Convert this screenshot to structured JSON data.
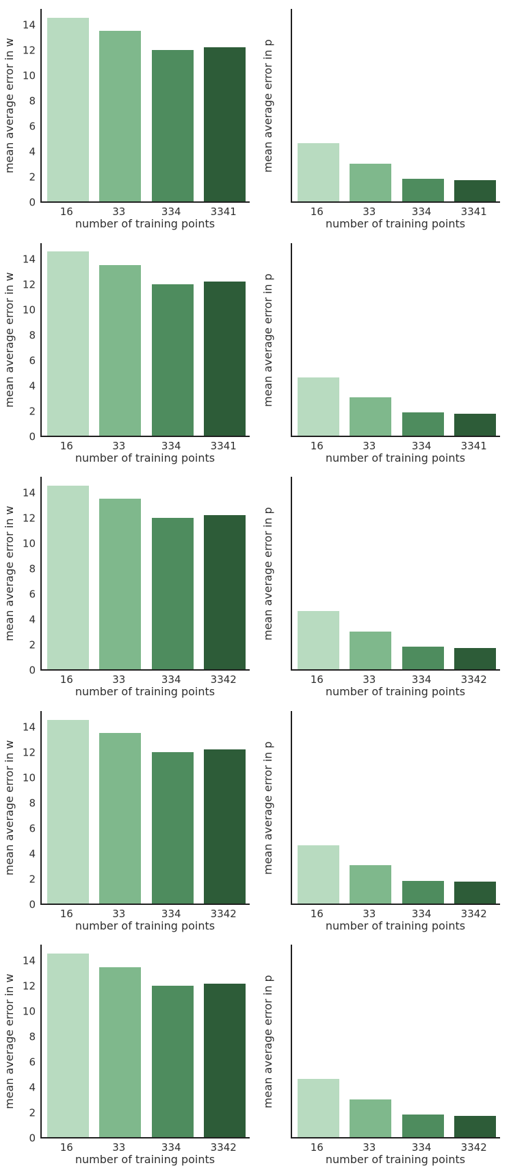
{
  "figure": {
    "background": "#ffffff",
    "rows": 5,
    "cols": 2,
    "grid": false,
    "legend": "none"
  },
  "palette": {
    "bars": [
      "#b8dbc0",
      "#7fb88c",
      "#4e8c5e",
      "#2d5c38"
    ],
    "spine": "#1f1f1f",
    "text": "#2e2e2e"
  },
  "chart_data": [
    {
      "type": "bar",
      "row": 1,
      "col": "left",
      "title": "",
      "ylabel": "mean average error in w",
      "xlabel": "number of training points",
      "categories": [
        "16",
        "33",
        "334",
        "3341"
      ],
      "values": [
        14.5,
        13.45,
        11.95,
        12.15
      ],
      "yticks": [
        "0",
        "2",
        "4",
        "6",
        "8",
        "10",
        "12",
        "14"
      ],
      "ytick_values": [
        0,
        2,
        4,
        6,
        8,
        10,
        12,
        14
      ],
      "show_ytick_labels": true,
      "ylim": [
        0,
        15.3
      ],
      "grid": false
    },
    {
      "type": "bar",
      "row": 1,
      "col": "right",
      "title": "",
      "ylabel": "mean average error in p",
      "xlabel": "number of training points",
      "categories": [
        "16",
        "33",
        "334",
        "3341"
      ],
      "values": [
        4.6,
        3.0,
        1.8,
        1.7
      ],
      "yticks": [],
      "ytick_values": [],
      "show_ytick_labels": false,
      "ylim": [
        0,
        15.3
      ],
      "grid": false
    },
    {
      "type": "bar",
      "row": 2,
      "col": "left",
      "title": "",
      "ylabel": "mean average error in w",
      "xlabel": "number of training points",
      "categories": [
        "16",
        "33",
        "334",
        "3341"
      ],
      "values": [
        14.5,
        13.45,
        11.95,
        12.15
      ],
      "yticks": [
        "0",
        "2",
        "4",
        "6",
        "8",
        "10",
        "12",
        "14"
      ],
      "ytick_values": [
        0,
        2,
        4,
        6,
        8,
        10,
        12,
        14
      ],
      "show_ytick_labels": true,
      "ylim": [
        0,
        15.3
      ],
      "grid": false
    },
    {
      "type": "bar",
      "row": 2,
      "col": "right",
      "title": "",
      "ylabel": "mean average error in p",
      "xlabel": "number of training points",
      "categories": [
        "16",
        "33",
        "334",
        "3341"
      ],
      "values": [
        4.6,
        3.0,
        1.8,
        1.7
      ],
      "yticks": [],
      "ytick_values": [],
      "show_ytick_labels": false,
      "ylim": [
        0,
        15.3
      ],
      "grid": false
    },
    {
      "type": "bar",
      "row": 3,
      "col": "left",
      "title": "",
      "ylabel": "mean average error in w",
      "xlabel": "number of training points",
      "categories": [
        "16",
        "33",
        "334",
        "3342"
      ],
      "values": [
        14.5,
        13.45,
        11.95,
        12.15
      ],
      "yticks": [
        "0",
        "2",
        "4",
        "6",
        "8",
        "10",
        "12",
        "14"
      ],
      "ytick_values": [
        0,
        2,
        4,
        6,
        8,
        10,
        12,
        14
      ],
      "show_ytick_labels": true,
      "ylim": [
        0,
        15.3
      ],
      "grid": false
    },
    {
      "type": "bar",
      "row": 3,
      "col": "right",
      "title": "",
      "ylabel": "mean average error in p",
      "xlabel": "number of training points",
      "categories": [
        "16",
        "33",
        "334",
        "3342"
      ],
      "values": [
        4.6,
        3.0,
        1.8,
        1.7
      ],
      "yticks": [],
      "ytick_values": [],
      "show_ytick_labels": false,
      "ylim": [
        0,
        15.3
      ],
      "grid": false
    },
    {
      "type": "bar",
      "row": 4,
      "col": "left",
      "title": "",
      "ylabel": "mean average error in w",
      "xlabel": "number of training points",
      "categories": [
        "16",
        "33",
        "334",
        "3342"
      ],
      "values": [
        14.5,
        13.45,
        11.95,
        12.15
      ],
      "yticks": [
        "0",
        "2",
        "4",
        "6",
        "8",
        "10",
        "12",
        "14"
      ],
      "ytick_values": [
        0,
        2,
        4,
        6,
        8,
        10,
        12,
        14
      ],
      "show_ytick_labels": true,
      "ylim": [
        0,
        15.3
      ],
      "grid": false
    },
    {
      "type": "bar",
      "row": 4,
      "col": "right",
      "title": "",
      "ylabel": "mean average error in p",
      "xlabel": "number of training points",
      "categories": [
        "16",
        "33",
        "334",
        "3342"
      ],
      "values": [
        4.6,
        3.0,
        1.8,
        1.7
      ],
      "yticks": [],
      "ytick_values": [],
      "show_ytick_labels": false,
      "ylim": [
        0,
        15.3
      ],
      "grid": false
    },
    {
      "type": "bar",
      "row": 5,
      "col": "left",
      "title": "",
      "ylabel": "mean average error in w",
      "xlabel": "number of training points",
      "categories": [
        "16",
        "33",
        "334",
        "3342"
      ],
      "values": [
        14.5,
        13.45,
        11.95,
        12.15
      ],
      "yticks": [
        "0",
        "2",
        "4",
        "6",
        "8",
        "10",
        "12",
        "14"
      ],
      "ytick_values": [
        0,
        2,
        4,
        6,
        8,
        10,
        12,
        14
      ],
      "show_ytick_labels": true,
      "ylim": [
        0,
        15.3
      ],
      "grid": false
    },
    {
      "type": "bar",
      "row": 5,
      "col": "right",
      "title": "",
      "ylabel": "mean average error in p",
      "xlabel": "number of training points",
      "categories": [
        "16",
        "33",
        "334",
        "3342"
      ],
      "values": [
        4.6,
        3.0,
        1.8,
        1.7
      ],
      "yticks": [],
      "ytick_values": [],
      "show_ytick_labels": false,
      "ylim": [
        0,
        15.3
      ],
      "grid": false
    }
  ]
}
